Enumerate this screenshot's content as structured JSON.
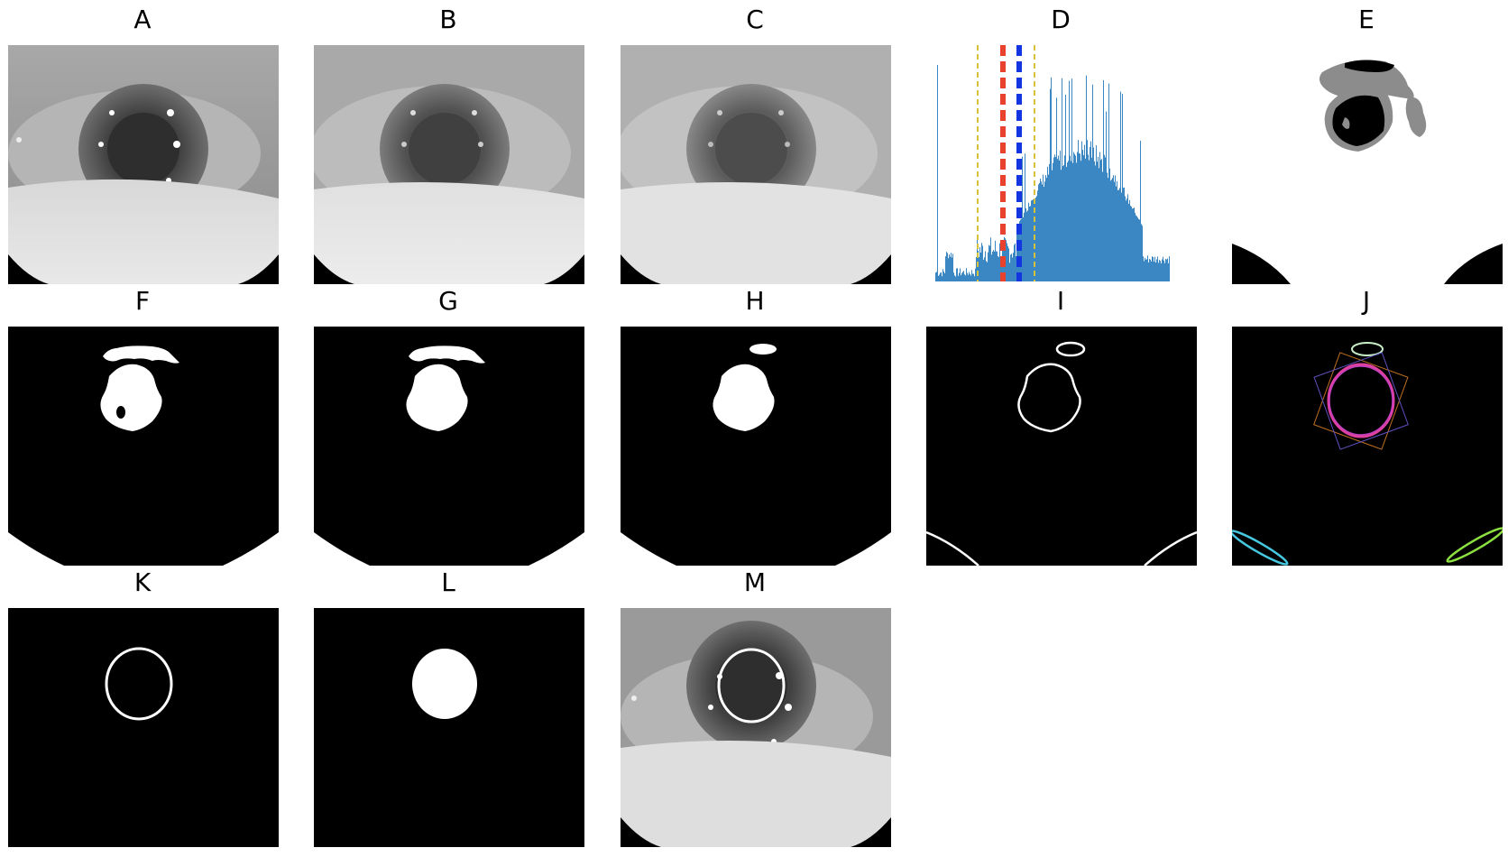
{
  "figure": {
    "panels": [
      {
        "id": "A",
        "label": "A",
        "kind": "eye-photo-raw"
      },
      {
        "id": "B",
        "label": "B",
        "kind": "eye-photo-blurred"
      },
      {
        "id": "C",
        "label": "C",
        "kind": "eye-photo-more-blurred"
      },
      {
        "id": "D",
        "label": "D",
        "kind": "intensity-histogram"
      },
      {
        "id": "E",
        "label": "E",
        "kind": "threshold-levels"
      },
      {
        "id": "F",
        "label": "F",
        "kind": "binary-mask-with-hole"
      },
      {
        "id": "G",
        "label": "G",
        "kind": "binary-mask-filled"
      },
      {
        "id": "H",
        "label": "H",
        "kind": "binary-mask-cleaned"
      },
      {
        "id": "I",
        "label": "I",
        "kind": "contours"
      },
      {
        "id": "J",
        "label": "J",
        "kind": "fitted-ellipses"
      },
      {
        "id": "K",
        "label": "K",
        "kind": "selected-ellipse-outline"
      },
      {
        "id": "L",
        "label": "L",
        "kind": "selected-ellipse-filled"
      },
      {
        "id": "M",
        "label": "M",
        "kind": "ellipse-overlay-on-photo"
      }
    ]
  },
  "colors": {
    "histogram_bar": "#3b87c3",
    "threshold_yellow": "#d6c23a",
    "threshold_red": "#e8412e",
    "threshold_blue": "#1436e0",
    "contour_white": "#ffffff",
    "ellipse_magenta": "#e040a0",
    "ellipse_cyan": "#46c8e0",
    "ellipse_green": "#8ce040",
    "ellipse_pale_green": "#c8f0c8"
  }
}
